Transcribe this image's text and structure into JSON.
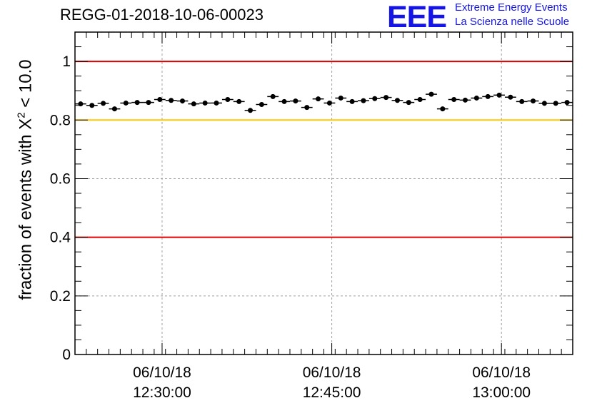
{
  "title": "REGG-01-2018-10-06-00023",
  "logo": {
    "mark": "EEE",
    "line1": "Extreme Energy Events",
    "line2": "La Scienza nelle Scuole",
    "color": "#1414e6"
  },
  "chart_data": {
    "type": "scatter",
    "title": "REGG-01-2018-10-06-00023",
    "ylabel_prefix": "fraction of events with ",
    "ylabel_symbol": "X",
    "ylabel_sup": "2",
    "ylabel_suffix": " < 10.0",
    "ylim": [
      0,
      1.1
    ],
    "y_ticks": [
      {
        "value": 0,
        "label": "0"
      },
      {
        "value": 0.2,
        "label": "0.2"
      },
      {
        "value": 0.4,
        "label": "0.4"
      },
      {
        "value": 0.6,
        "label": "0.6"
      },
      {
        "value": 0.8,
        "label": "0.8"
      },
      {
        "value": 1.0,
        "label": "1"
      }
    ],
    "x_range_minutes": [
      0,
      44
    ],
    "x_ticks": [
      {
        "pos": 7.7,
        "date": "06/10/18",
        "time": "12:30:00"
      },
      {
        "pos": 22.7,
        "date": "06/10/18",
        "time": "12:45:00"
      },
      {
        "pos": 37.7,
        "date": "06/10/18",
        "time": "13:00:00"
      }
    ],
    "reference_lines": [
      {
        "y": 1.0,
        "color": "#e00000"
      },
      {
        "y": 0.8,
        "color": "#ffc800"
      },
      {
        "y": 0.4,
        "color": "#e00000"
      }
    ],
    "grid": true,
    "series": [
      {
        "x": [
          0.5,
          1.5,
          2.5,
          3.5,
          4.5,
          5.5,
          6.5,
          7.5,
          8.5,
          9.5,
          10.5,
          11.5,
          12.5,
          13.5,
          14.5,
          15.5,
          16.5,
          17.5,
          18.5,
          19.5,
          20.5,
          21.5,
          22.5,
          23.5,
          24.5,
          25.5,
          26.5,
          27.5,
          28.5,
          29.5,
          30.5,
          31.5,
          32.5,
          33.5,
          34.5,
          35.5,
          36.5,
          37.5,
          38.5,
          39.5,
          40.5,
          41.5,
          42.5,
          43.5
        ],
        "y": [
          0.855,
          0.85,
          0.857,
          0.838,
          0.858,
          0.86,
          0.86,
          0.87,
          0.867,
          0.865,
          0.855,
          0.858,
          0.858,
          0.87,
          0.863,
          0.833,
          0.853,
          0.88,
          0.863,
          0.865,
          0.843,
          0.872,
          0.858,
          0.875,
          0.863,
          0.866,
          0.873,
          0.877,
          0.867,
          0.86,
          0.87,
          0.888,
          0.838,
          0.87,
          0.868,
          0.875,
          0.88,
          0.885,
          0.878,
          0.863,
          0.865,
          0.857,
          0.857,
          0.86
        ],
        "yerr": 0.006,
        "color": "#000000"
      }
    ]
  }
}
